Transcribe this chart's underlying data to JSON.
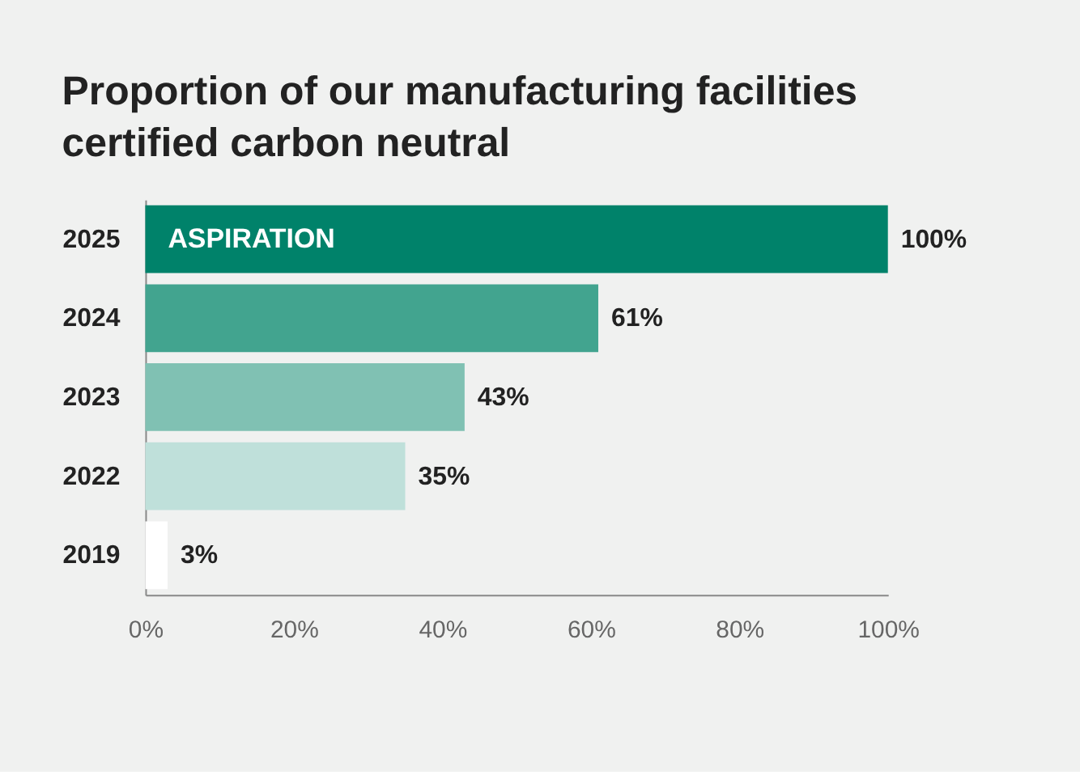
{
  "chart_data": {
    "type": "bar",
    "orientation": "horizontal",
    "title": [
      "Proportion of our manufacturing facilities",
      "certified carbon neutral"
    ],
    "categories": [
      "2025",
      "2024",
      "2023",
      "2022",
      "2019"
    ],
    "values": [
      100,
      61,
      43,
      35,
      3
    ],
    "colors": [
      "#00826a",
      "#42a48f",
      "#80c1b3",
      "#bfe0da",
      "#ffffff"
    ],
    "value_labels": [
      "100%",
      "61%",
      "43%",
      "35%",
      "3%"
    ],
    "xlim": [
      0,
      100
    ],
    "xticks": [
      {
        "value": 0,
        "label": "0%"
      },
      {
        "value": 20,
        "label": "20%"
      },
      {
        "value": 40,
        "label": "40%"
      },
      {
        "value": 60,
        "label": "60%"
      },
      {
        "value": 80,
        "label": "80%"
      },
      {
        "value": 100,
        "label": "100%"
      }
    ],
    "annotations": [
      {
        "text": "ASPIRATION",
        "x": 0,
        "y": "2025"
      }
    ],
    "grid": false
  }
}
